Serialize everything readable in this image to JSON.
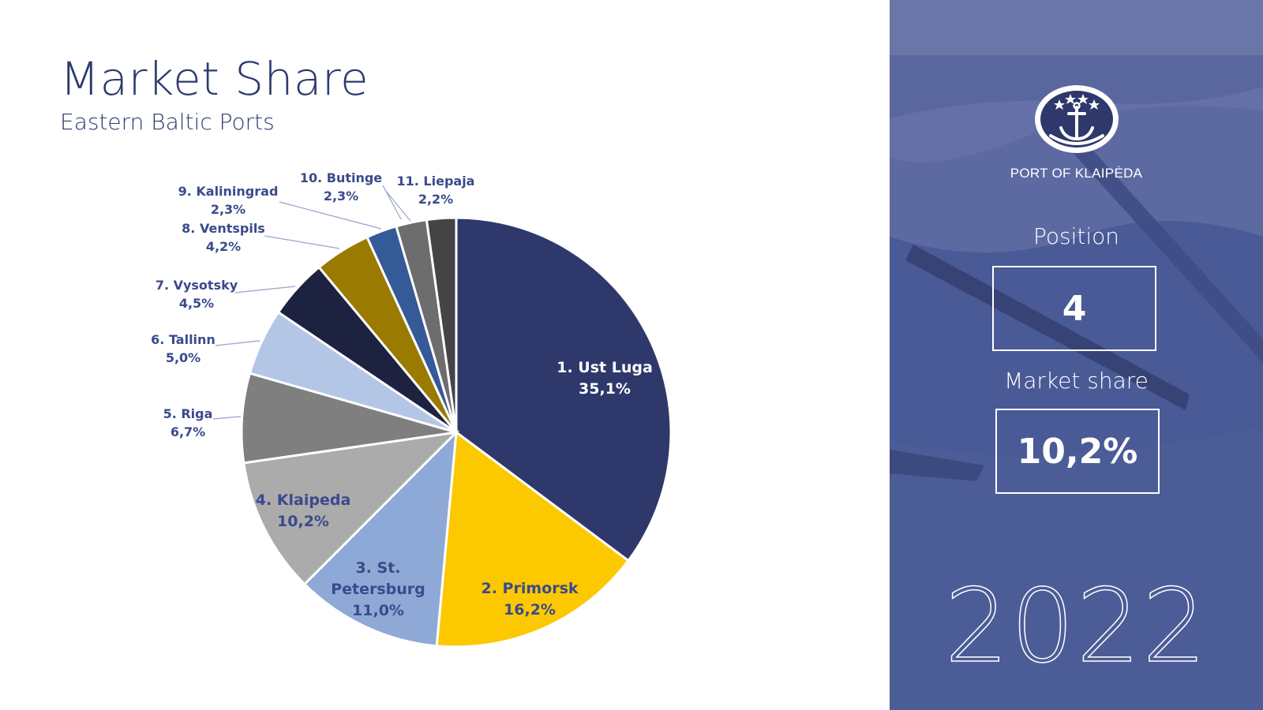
{
  "header": {
    "title": "Market Share",
    "subtitle": "Eastern Baltic Ports"
  },
  "chart_data": {
    "type": "pie",
    "title": "",
    "categories": [
      "1. Ust Luga",
      "2. Primorsk",
      "3. St. Petersburg",
      "4. Klaipeda",
      "5. Riga",
      "6. Tallinn",
      "7. Vysotsky",
      "8. Ventspils",
      "9. Kaliningrad",
      "10. Butinge",
      "11. Liepaja"
    ],
    "values": [
      35.1,
      16.2,
      11.0,
      10.2,
      6.7,
      5.0,
      4.5,
      4.2,
      2.3,
      2.3,
      2.2
    ],
    "value_labels": [
      "35,1%",
      "16,2%",
      "11,0%",
      "10,2%",
      "6,7%",
      "5,0%",
      "4,5%",
      "4,2%",
      "2,3%",
      "2,3%",
      "2,2%"
    ],
    "colors": [
      "#2e386b",
      "#fcc800",
      "#8ea9d5",
      "#ababab",
      "#7f7f7f",
      "#b4c6e6",
      "#1c2240",
      "#9a7a00",
      "#355a98",
      "#6d6d6d",
      "#444444"
    ],
    "label_colors": [
      "#ffffff",
      "#3a4a8c",
      "#3a4a8c",
      "#3a4a8c",
      "#3a4a8c",
      "#3a4a8c",
      "#3a4a8c",
      "#3a4a8c",
      "#3a4a8c",
      "#3a4a8c",
      "#3a4a8c"
    ],
    "label_placement": [
      "inside",
      "inside",
      "inside",
      "inside",
      "outside",
      "outside",
      "outside",
      "outside",
      "outside",
      "outside",
      "outside"
    ],
    "start": "12 o'clock, clockwise"
  },
  "sidebar": {
    "brand": "PORT OF KLAIPĖDA",
    "position_label": "Position",
    "position_value": "4",
    "share_label": "Market share",
    "share_value": "10,2%",
    "year": "2022",
    "accent": "#4a5a96"
  }
}
